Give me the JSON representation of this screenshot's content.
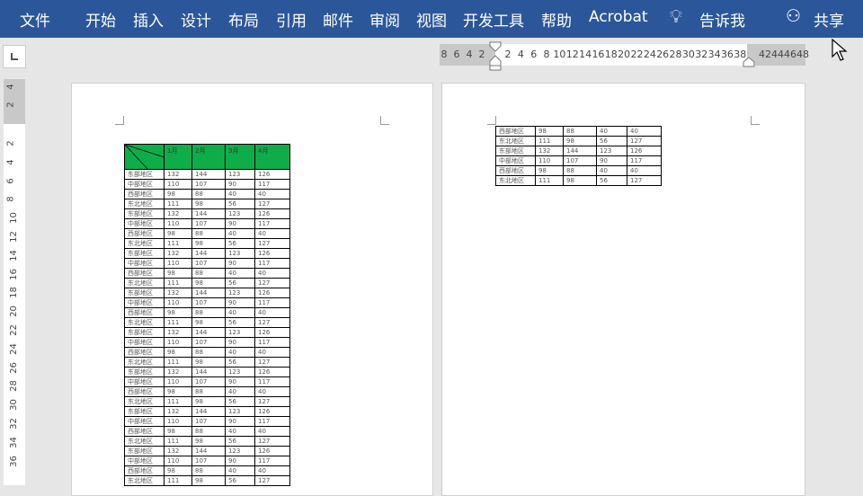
{
  "ribbon": {
    "tabs": [
      "文件",
      "开始",
      "插入",
      "设计",
      "布局",
      "引用",
      "邮件",
      "审阅",
      "视图",
      "开发工具",
      "帮助",
      "Acrobat"
    ],
    "tell_me": "告诉我",
    "share": "共享",
    "color": "#2b579a"
  },
  "h_ruler": {
    "left": [
      "8",
      "6",
      "4",
      "2"
    ],
    "main": [
      "2",
      "4",
      "6",
      "8",
      "10",
      "12",
      "14",
      "16",
      "18",
      "20",
      "22",
      "24",
      "26",
      "28",
      "30",
      "32",
      "34",
      "36",
      "38"
    ],
    "right": [
      "42",
      "44",
      "46",
      "48"
    ]
  },
  "v_ruler": {
    "top": [
      "4",
      "2"
    ],
    "main": [
      "2",
      "4",
      "6",
      "8",
      "10",
      "12",
      "14",
      "16",
      "18",
      "20",
      "22",
      "24",
      "26",
      "28",
      "30",
      "32",
      "34",
      "36"
    ]
  },
  "table": {
    "header_color": "#0fad4a",
    "months": [
      "1月",
      "2月",
      "3月",
      "4月"
    ],
    "page1_rows": [
      [
        "东部地区",
        "132",
        "144",
        "123",
        "126"
      ],
      [
        "中部地区",
        "110",
        "107",
        "90",
        "117"
      ],
      [
        "西部地区",
        "98",
        "88",
        "40",
        "40"
      ],
      [
        "东北地区",
        "111",
        "98",
        "56",
        "127"
      ],
      [
        "东部地区",
        "132",
        "144",
        "123",
        "126"
      ],
      [
        "中部地区",
        "110",
        "107",
        "90",
        "117"
      ],
      [
        "西部地区",
        "98",
        "88",
        "40",
        "40"
      ],
      [
        "东北地区",
        "111",
        "98",
        "56",
        "127"
      ],
      [
        "东部地区",
        "132",
        "144",
        "123",
        "126"
      ],
      [
        "中部地区",
        "110",
        "107",
        "90",
        "117"
      ],
      [
        "西部地区",
        "98",
        "88",
        "40",
        "40"
      ],
      [
        "东北地区",
        "111",
        "98",
        "56",
        "127"
      ],
      [
        "东部地区",
        "132",
        "144",
        "123",
        "126"
      ],
      [
        "中部地区",
        "110",
        "107",
        "90",
        "117"
      ],
      [
        "西部地区",
        "98",
        "88",
        "40",
        "40"
      ],
      [
        "东北地区",
        "111",
        "98",
        "56",
        "127"
      ],
      [
        "东部地区",
        "132",
        "144",
        "123",
        "126"
      ],
      [
        "中部地区",
        "110",
        "107",
        "90",
        "117"
      ],
      [
        "西部地区",
        "98",
        "88",
        "40",
        "40"
      ],
      [
        "东北地区",
        "111",
        "98",
        "56",
        "127"
      ],
      [
        "东部地区",
        "132",
        "144",
        "123",
        "126"
      ],
      [
        "中部地区",
        "110",
        "107",
        "90",
        "117"
      ],
      [
        "西部地区",
        "98",
        "88",
        "40",
        "40"
      ],
      [
        "东北地区",
        "111",
        "98",
        "56",
        "127"
      ],
      [
        "东部地区",
        "132",
        "144",
        "123",
        "126"
      ],
      [
        "中部地区",
        "110",
        "107",
        "90",
        "117"
      ],
      [
        "西部地区",
        "98",
        "88",
        "40",
        "40"
      ],
      [
        "东北地区",
        "111",
        "98",
        "56",
        "127"
      ],
      [
        "东部地区",
        "132",
        "144",
        "123",
        "126"
      ],
      [
        "中部地区",
        "110",
        "107",
        "90",
        "117"
      ],
      [
        "西部地区",
        "98",
        "88",
        "40",
        "40"
      ],
      [
        "东北地区",
        "111",
        "98",
        "56",
        "127"
      ]
    ],
    "page2_rows": [
      [
        "西部地区",
        "98",
        "88",
        "40",
        "40"
      ],
      [
        "东北地区",
        "111",
        "98",
        "56",
        "127"
      ],
      [
        "东部地区",
        "132",
        "144",
        "123",
        "126"
      ],
      [
        "中部地区",
        "110",
        "107",
        "90",
        "117"
      ],
      [
        "西部地区",
        "98",
        "88",
        "40",
        "40"
      ],
      [
        "东北地区",
        "111",
        "98",
        "56",
        "127"
      ]
    ]
  }
}
